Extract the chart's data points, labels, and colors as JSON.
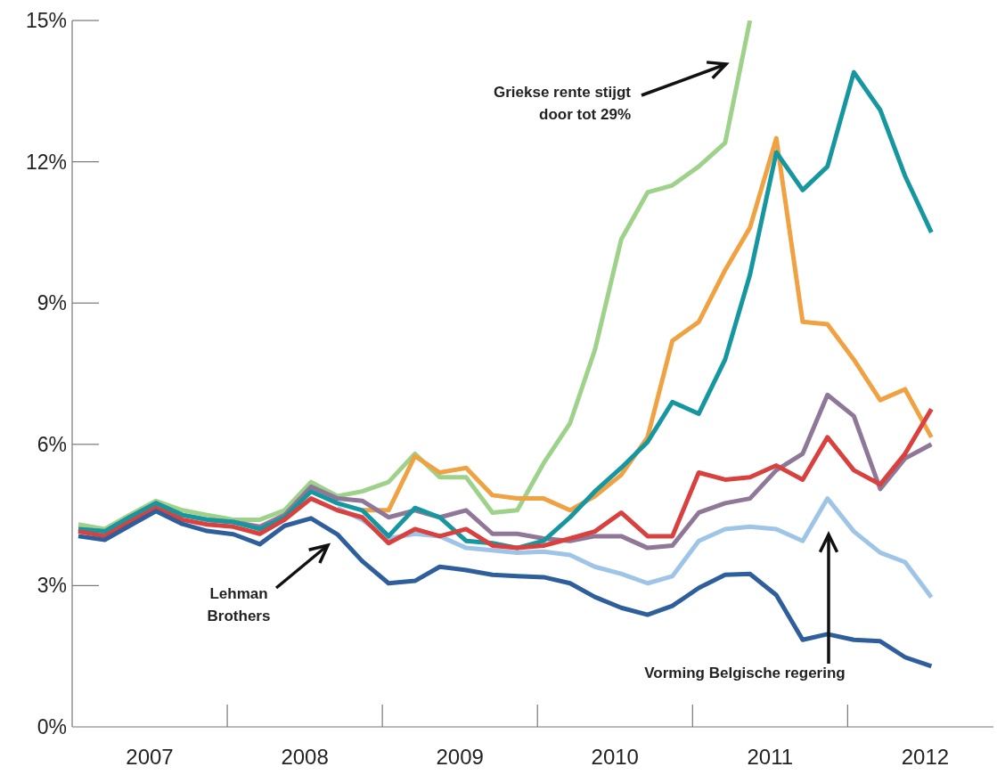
{
  "chart_data": {
    "type": "line",
    "x": [
      2007.04,
      2007.21,
      2007.37,
      2007.54,
      2007.71,
      2007.87,
      2008.04,
      2008.21,
      2008.37,
      2008.54,
      2008.71,
      2008.87,
      2009.04,
      2009.21,
      2009.37,
      2009.54,
      2009.71,
      2009.87,
      2010.04,
      2010.21,
      2010.37,
      2010.54,
      2010.71,
      2010.87,
      2011.04,
      2011.21,
      2011.37,
      2011.54,
      2011.71,
      2011.87,
      2012.04,
      2012.21,
      2012.37,
      2012.54
    ],
    "series": [
      {
        "color": "#9ed28a",
        "values": [
          4.3,
          4.2,
          4.5,
          4.8,
          4.6,
          4.5,
          4.4,
          4.4,
          4.6,
          5.2,
          4.9,
          5.0,
          5.2,
          5.8,
          5.3,
          5.3,
          4.55,
          4.6,
          5.6,
          6.45,
          8.0,
          10.35,
          11.35,
          11.5,
          11.9,
          12.4,
          15,
          null,
          null,
          null,
          null,
          null,
          null,
          null
        ]
      },
      {
        "color": "#f0a243",
        "values": [
          null,
          null,
          null,
          null,
          null,
          null,
          null,
          null,
          null,
          null,
          null,
          4.6,
          4.6,
          5.75,
          5.4,
          5.5,
          4.92,
          4.85,
          4.85,
          4.6,
          4.9,
          5.35,
          6.15,
          8.2,
          8.6,
          9.7,
          10.6,
          12.5,
          8.6,
          8.55,
          7.8,
          6.94,
          7.17,
          6.15
        ]
      },
      {
        "color": "#8e7797",
        "values": [
          4.2,
          4.15,
          4.45,
          4.75,
          4.5,
          4.4,
          4.35,
          4.25,
          4.5,
          5.1,
          4.85,
          4.8,
          4.45,
          4.6,
          4.45,
          4.6,
          4.1,
          4.1,
          4.0,
          3.95,
          4.05,
          4.05,
          3.8,
          3.85,
          4.55,
          4.75,
          4.85,
          5.45,
          5.8,
          7.05,
          6.6,
          5.05,
          5.7,
          6.0
        ]
      },
      {
        "color": "#9ec4e8",
        "values": [
          null,
          null,
          null,
          null,
          null,
          null,
          null,
          null,
          null,
          null,
          4.65,
          4.4,
          4.0,
          4.1,
          4.05,
          3.8,
          3.75,
          3.7,
          3.72,
          3.65,
          3.4,
          3.25,
          3.05,
          3.2,
          3.95,
          4.2,
          4.25,
          4.2,
          3.95,
          4.85,
          4.15,
          3.7,
          3.5,
          2.75
        ]
      },
      {
        "color": "#16979f",
        "values": [
          4.2,
          4.15,
          4.45,
          4.75,
          4.5,
          4.4,
          4.35,
          4.2,
          4.45,
          5.0,
          4.75,
          4.6,
          4.05,
          4.65,
          4.45,
          3.95,
          3.9,
          3.8,
          3.95,
          4.45,
          5.0,
          5.5,
          6.05,
          6.9,
          6.65,
          7.8,
          9.6,
          12.2,
          11.4,
          11.9,
          13.9,
          13.1,
          11.7,
          10.5
        ]
      },
      {
        "color": "#d9413f",
        "values": [
          4.15,
          4.05,
          4.35,
          4.65,
          4.4,
          4.3,
          4.25,
          4.1,
          4.4,
          4.85,
          4.6,
          4.45,
          3.9,
          4.2,
          4.05,
          4.2,
          3.85,
          3.8,
          3.85,
          4.0,
          4.15,
          4.55,
          4.05,
          4.05,
          5.4,
          5.25,
          5.3,
          5.55,
          5.25,
          6.15,
          5.45,
          5.15,
          5.8,
          6.75
        ]
      },
      {
        "color": "#2e5f9c",
        "values": [
          4.05,
          3.97,
          4.27,
          4.58,
          4.31,
          4.16,
          4.09,
          3.88,
          4.27,
          4.43,
          4.09,
          3.52,
          3.05,
          3.1,
          3.4,
          3.33,
          3.23,
          3.2,
          3.18,
          3.05,
          2.76,
          2.53,
          2.38,
          2.57,
          2.95,
          3.23,
          3.25,
          2.8,
          1.85,
          1.97,
          1.85,
          1.82,
          1.48,
          1.29
        ]
      }
    ],
    "xlim": [
      2007,
      2012.94
    ],
    "xticks": [
      {
        "value": 2007.5,
        "label": "2007"
      },
      {
        "value": 2008.5,
        "label": "2008"
      },
      {
        "value": 2009.5,
        "label": "2009"
      },
      {
        "value": 2010.5,
        "label": "2010"
      },
      {
        "value": 2011.5,
        "label": "2011"
      },
      {
        "value": 2012.5,
        "label": "2012"
      }
    ],
    "ylim": [
      0,
      15
    ],
    "yticks": [
      {
        "value": 0,
        "label": "0%"
      },
      {
        "value": 3,
        "label": "3%"
      },
      {
        "value": 6,
        "label": "6%"
      },
      {
        "value": 9,
        "label": "9%"
      },
      {
        "value": 12,
        "label": "12%"
      },
      {
        "value": 15,
        "label": "15%"
      }
    ],
    "annotations": [
      "Griekse rente stijgt door tot 29%",
      "Lehman Brothers",
      "Vorming Belgische regering"
    ]
  }
}
